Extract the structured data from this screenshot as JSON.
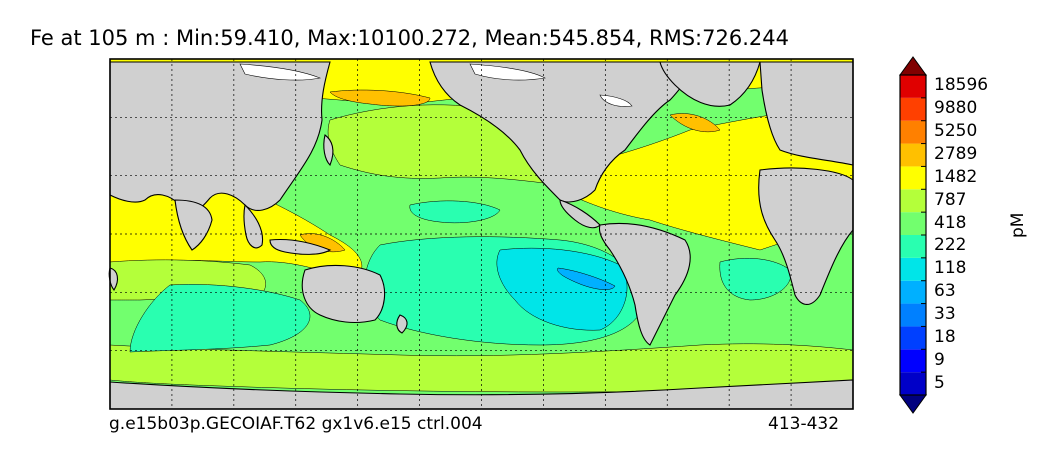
{
  "chart_data": {
    "type": "heatmap",
    "title": "Fe at 105 m : Min:59.410, Max:10100.272, Mean:545.854, RMS:726.244",
    "variable": "Fe",
    "depth": "105 m",
    "stats": {
      "min": 59.41,
      "max": 10100.272,
      "mean": 545.854,
      "rms": 726.244
    },
    "footer_left": "g.e15b03p.GECOIAF.T62 gx1v6.e15 ctrl.004",
    "footer_right": "413-432",
    "colorbar": {
      "unit": "pM",
      "levels": [
        5,
        9,
        18,
        33,
        63,
        118,
        222,
        418,
        787,
        1482,
        2789,
        5250,
        9880,
        18596
      ],
      "tick_labels": [
        "5",
        "9",
        "18",
        "33",
        "63",
        "118",
        "222",
        "418",
        "787",
        "1482",
        "2789",
        "5250",
        "9880",
        "18596"
      ],
      "colors": [
        "#00007f",
        "#0000c8",
        "#0000ff",
        "#0040ff",
        "#0080ff",
        "#00b0ff",
        "#00e5e8",
        "#29ffb0",
        "#72ff6e",
        "#b4ff3a",
        "#ffff00",
        "#ffc000",
        "#ff8000",
        "#ff4000",
        "#e00000",
        "#800000"
      ],
      "extend": "both"
    },
    "map": {
      "projection": "cylindrical",
      "land_color": "#d0d0d0",
      "grid": true
    }
  }
}
